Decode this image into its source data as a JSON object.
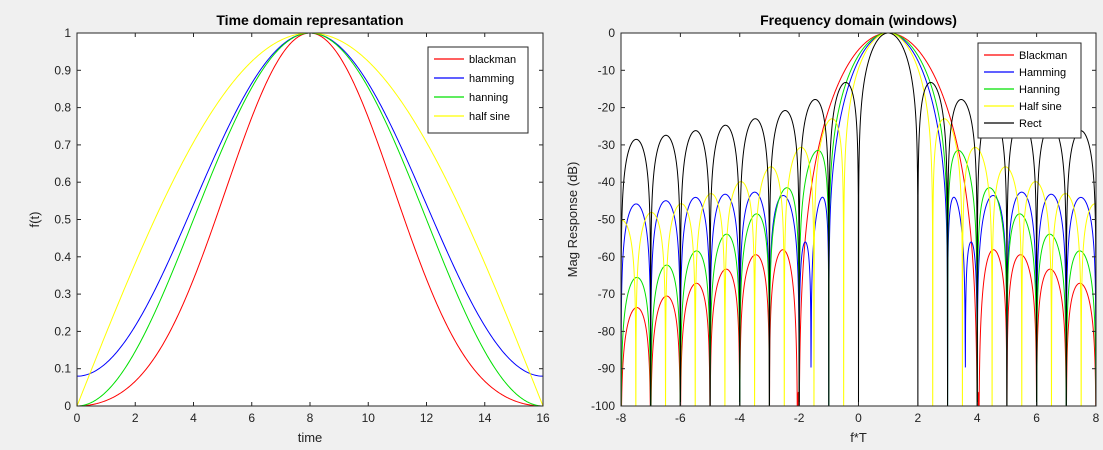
{
  "chart_data": [
    {
      "type": "line",
      "title": "Time domain represantation",
      "xlabel": "time",
      "ylabel": "f(t)",
      "xlim": [
        0,
        16
      ],
      "ylim": [
        0,
        1
      ],
      "xticks": [
        "0",
        "2",
        "4",
        "6",
        "8",
        "10",
        "12",
        "14",
        "16"
      ],
      "yticks": [
        "0",
        "0.1",
        "0.2",
        "0.3",
        "0.4",
        "0.5",
        "0.6",
        "0.7",
        "0.8",
        "0.9",
        "1"
      ],
      "grid": false,
      "legend_position": "top-right",
      "window_length": 16,
      "series": [
        {
          "name": "blackman",
          "color": "#ff0000",
          "window": "blackman"
        },
        {
          "name": "hamming",
          "color": "#0000ff",
          "window": "hamming"
        },
        {
          "name": "hanning",
          "color": "#00e000",
          "window": "hanning"
        },
        {
          "name": "half sine",
          "color": "#ffff00",
          "window": "halfsine"
        }
      ]
    },
    {
      "type": "line",
      "title": "Frequency domain (windows)",
      "xlabel": "f*T",
      "ylabel": "Mag Response (dB)",
      "xlim": [
        -8,
        8
      ],
      "ylim": [
        -100,
        0
      ],
      "xticks": [
        "-8",
        "-6",
        "-4",
        "-2",
        "0",
        "2",
        "4",
        "6",
        "8"
      ],
      "yticks": [
        "-100",
        "-90",
        "-80",
        "-70",
        "-60",
        "-50",
        "-40",
        "-30",
        "-20",
        "-10",
        "0"
      ],
      "grid": false,
      "legend_position": "top-right",
      "center_frequency": 1,
      "series": [
        {
          "name": "Blackman",
          "color": "#ff0000",
          "window": "blackman"
        },
        {
          "name": "Hamming",
          "color": "#0000ff",
          "window": "hamming"
        },
        {
          "name": "Hanning",
          "color": "#00e000",
          "window": "hanning"
        },
        {
          "name": "Half sine",
          "color": "#ffff00",
          "window": "halfsine"
        },
        {
          "name": "Rect",
          "color": "#000000",
          "window": "rect"
        }
      ]
    }
  ]
}
